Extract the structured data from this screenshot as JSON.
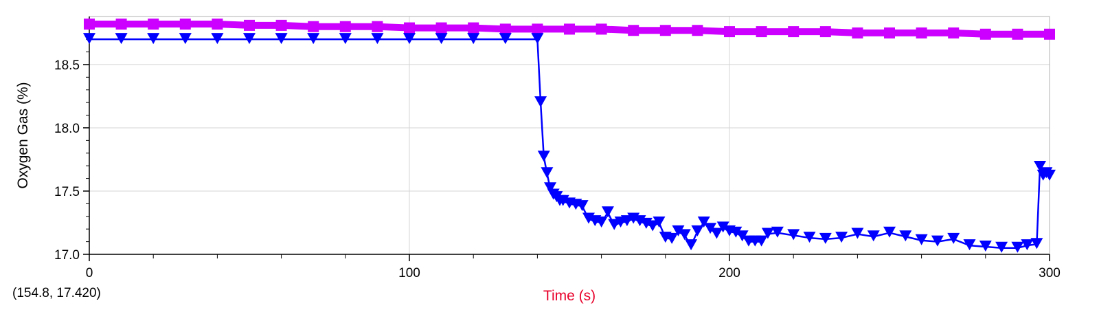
{
  "chart_data": {
    "type": "scatter",
    "xlabel": "Time (s)",
    "ylabel": "Oxygen Gas (%)",
    "xlim": [
      0,
      300
    ],
    "ylim": [
      17.0,
      18.88
    ],
    "x_ticks": [
      "0",
      "100",
      "200",
      "300"
    ],
    "y_ticks": [
      "17.0",
      "17.5",
      "18.0",
      "18.5"
    ],
    "grid": true,
    "series": [
      {
        "marker": "square",
        "color": "#cc00ff",
        "points": [
          [
            0,
            18.82
          ],
          [
            10,
            18.82
          ],
          [
            20,
            18.82
          ],
          [
            30,
            18.82
          ],
          [
            40,
            18.82
          ],
          [
            50,
            18.81
          ],
          [
            60,
            18.81
          ],
          [
            70,
            18.8
          ],
          [
            80,
            18.8
          ],
          [
            90,
            18.8
          ],
          [
            100,
            18.79
          ],
          [
            110,
            18.79
          ],
          [
            120,
            18.79
          ],
          [
            130,
            18.78
          ],
          [
            140,
            18.78
          ],
          [
            150,
            18.78
          ],
          [
            160,
            18.78
          ],
          [
            170,
            18.77
          ],
          [
            180,
            18.77
          ],
          [
            190,
            18.77
          ],
          [
            200,
            18.76
          ],
          [
            210,
            18.76
          ],
          [
            220,
            18.76
          ],
          [
            230,
            18.76
          ],
          [
            240,
            18.75
          ],
          [
            250,
            18.75
          ],
          [
            260,
            18.75
          ],
          [
            270,
            18.75
          ],
          [
            280,
            18.74
          ],
          [
            290,
            18.74
          ],
          [
            300,
            18.74
          ]
        ]
      },
      {
        "marker": "triangle-down",
        "color": "#0000ff",
        "points": [
          [
            0,
            18.7
          ],
          [
            10,
            18.7
          ],
          [
            20,
            18.7
          ],
          [
            30,
            18.7
          ],
          [
            40,
            18.7
          ],
          [
            50,
            18.7
          ],
          [
            60,
            18.7
          ],
          [
            70,
            18.7
          ],
          [
            80,
            18.7
          ],
          [
            90,
            18.7
          ],
          [
            100,
            18.7
          ],
          [
            110,
            18.7
          ],
          [
            120,
            18.7
          ],
          [
            130,
            18.7
          ],
          [
            140,
            18.7
          ],
          [
            141,
            18.2
          ],
          [
            142,
            17.77
          ],
          [
            143,
            17.64
          ],
          [
            144,
            17.52
          ],
          [
            145,
            17.47
          ],
          [
            146,
            17.45
          ],
          [
            147,
            17.42
          ],
          [
            148,
            17.42
          ],
          [
            150,
            17.4
          ],
          [
            152,
            17.39
          ],
          [
            154,
            17.38
          ],
          [
            156,
            17.28
          ],
          [
            158,
            17.26
          ],
          [
            160,
            17.25
          ],
          [
            162,
            17.33
          ],
          [
            164,
            17.23
          ],
          [
            166,
            17.25
          ],
          [
            168,
            17.26
          ],
          [
            170,
            17.28
          ],
          [
            172,
            17.26
          ],
          [
            174,
            17.24
          ],
          [
            176,
            17.22
          ],
          [
            178,
            17.25
          ],
          [
            180,
            17.13
          ],
          [
            182,
            17.12
          ],
          [
            184,
            17.18
          ],
          [
            186,
            17.15
          ],
          [
            188,
            17.07
          ],
          [
            190,
            17.18
          ],
          [
            192,
            17.25
          ],
          [
            194,
            17.2
          ],
          [
            196,
            17.16
          ],
          [
            198,
            17.21
          ],
          [
            200,
            17.18
          ],
          [
            202,
            17.17
          ],
          [
            204,
            17.14
          ],
          [
            206,
            17.1
          ],
          [
            208,
            17.1
          ],
          [
            210,
            17.1
          ],
          [
            212,
            17.16
          ],
          [
            215,
            17.17
          ],
          [
            220,
            17.15
          ],
          [
            225,
            17.13
          ],
          [
            230,
            17.12
          ],
          [
            235,
            17.13
          ],
          [
            240,
            17.16
          ],
          [
            245,
            17.14
          ],
          [
            250,
            17.17
          ],
          [
            255,
            17.14
          ],
          [
            260,
            17.11
          ],
          [
            265,
            17.1
          ],
          [
            270,
            17.12
          ],
          [
            275,
            17.07
          ],
          [
            280,
            17.06
          ],
          [
            285,
            17.05
          ],
          [
            290,
            17.05
          ],
          [
            293,
            17.07
          ],
          [
            296,
            17.08
          ],
          [
            297,
            17.69
          ],
          [
            298,
            17.62
          ],
          [
            299,
            17.64
          ],
          [
            300,
            17.62
          ]
        ]
      }
    ]
  },
  "readout": "(154.8, 17.420)",
  "colors": {
    "grid": "#d4d4d4",
    "axis": "#000000",
    "xlabel": "#e8002a",
    "ylabel": "#000000"
  }
}
